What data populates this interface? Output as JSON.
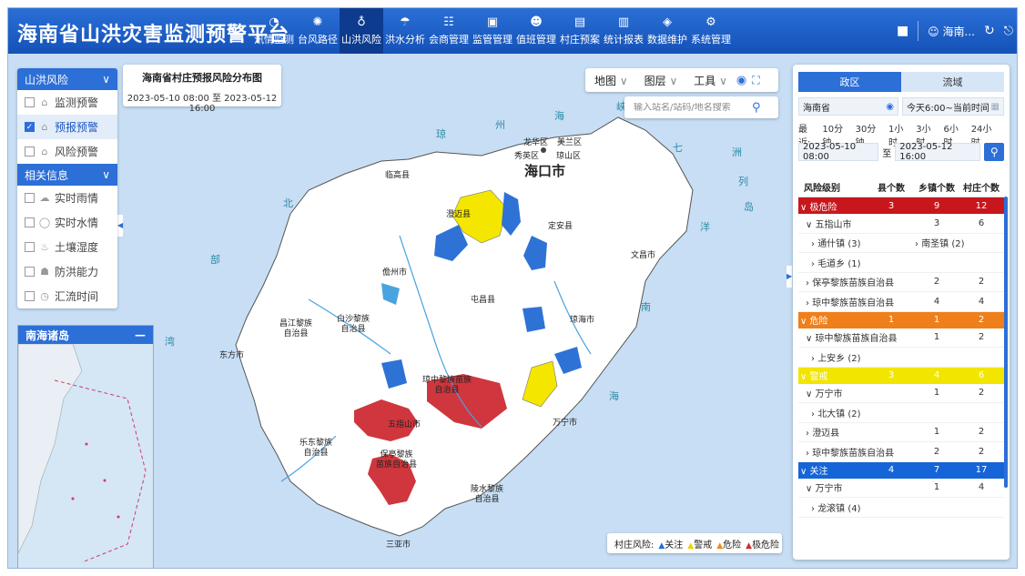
{
  "header": {
    "title": "海南省山洪灾害监测预警平台",
    "nav": [
      {
        "label": "汛情监测",
        "icon": "gauge-icon",
        "active": false
      },
      {
        "label": "台风路径",
        "icon": "typhoon-icon",
        "active": false
      },
      {
        "label": "山洪风险",
        "icon": "water-drop-icon",
        "active": true
      },
      {
        "label": "洪水分析",
        "icon": "flood-icon",
        "active": false
      },
      {
        "label": "会商管理",
        "icon": "meeting-icon",
        "active": false
      },
      {
        "label": "监管管理",
        "icon": "monitor-icon",
        "active": false
      },
      {
        "label": "值班管理",
        "icon": "duty-icon",
        "active": false
      },
      {
        "label": "村庄预案",
        "icon": "plan-icon",
        "active": false
      },
      {
        "label": "统计报表",
        "icon": "report-icon",
        "active": false
      },
      {
        "label": "数据维护",
        "icon": "data-icon",
        "active": false
      },
      {
        "label": "系统管理",
        "icon": "settings-icon",
        "active": false
      }
    ],
    "user": "海南..."
  },
  "left_panel": {
    "section1_title": "山洪风险",
    "section1_items": [
      {
        "label": "监测预警",
        "checked": false
      },
      {
        "label": "预报预警",
        "checked": true
      },
      {
        "label": "风险预警",
        "checked": false
      }
    ],
    "section2_title": "相关信息",
    "section2_items": [
      {
        "label": "实时雨情",
        "checked": false
      },
      {
        "label": "实时水情",
        "checked": false
      },
      {
        "label": "土壤湿度",
        "checked": false
      },
      {
        "label": "防洪能力",
        "checked": false
      },
      {
        "label": "汇流时间",
        "checked": false
      }
    ]
  },
  "minimap": {
    "title": "南海诸岛"
  },
  "title_card": {
    "title": "海南省村庄预报风险分布图",
    "range": "2023-05-10 08:00 至 2023-05-12 16:00"
  },
  "toolbar": {
    "map": "地图",
    "layers": "图层",
    "tools": "工具"
  },
  "search": {
    "placeholder": "输入站名/站码/地名搜索"
  },
  "map_labels": {
    "haikou": "海口市",
    "cities": [
      {
        "name": "龙华区"
      },
      {
        "name": "美兰区"
      },
      {
        "name": "秀英区"
      },
      {
        "name": "琼山区"
      },
      {
        "name": "临高县"
      },
      {
        "name": "澄迈县"
      },
      {
        "name": "定安县"
      },
      {
        "name": "文昌市"
      },
      {
        "name": "儋州市"
      },
      {
        "name": "屯昌县"
      },
      {
        "name": "琼海市"
      },
      {
        "name": "昌江黎族\n自治县"
      },
      {
        "name": "白沙黎族\n自治县"
      },
      {
        "name": "东方市"
      },
      {
        "name": "琼中黎族苗族\n自治县"
      },
      {
        "name": "五指山市"
      },
      {
        "name": "万宁市"
      },
      {
        "name": "乐东黎族\n自治县"
      },
      {
        "name": "保亭黎族\n苗族自治县"
      },
      {
        "name": "陵水黎族\n自治县"
      },
      {
        "name": "三亚市"
      }
    ],
    "seas": [
      "琼",
      "州",
      "海",
      "峡",
      "北",
      "部",
      "湾",
      "南",
      "海",
      "七",
      "洲",
      "列",
      "岛",
      "洋"
    ]
  },
  "legend": {
    "label": "村庄风险:",
    "items": [
      {
        "name": "关注",
        "color": "#1f6fe0"
      },
      {
        "name": "警戒",
        "color": "#f0d000"
      },
      {
        "name": "危险",
        "color": "#f08a1e"
      },
      {
        "name": "极危险",
        "color": "#d42a2a"
      }
    ]
  },
  "right_panel": {
    "tabs": [
      {
        "label": "政区",
        "active": true
      },
      {
        "label": "流域",
        "active": false
      }
    ],
    "region": "海南省",
    "time_preset": "今天6:00~当前时间",
    "recent_label": "最近:",
    "recent_options": [
      "10分钟",
      "30分钟",
      "1小时",
      "3小时",
      "6小时",
      "24小时"
    ],
    "start_time": "2023-05-10 08:00",
    "to_label": "至",
    "end_time": "2023-05-12 16:00",
    "table_headers": [
      "风险级别",
      "县个数",
      "乡镇个数",
      "村庄个数"
    ],
    "levels": [
      {
        "name": "极危险",
        "color": "#c8161d",
        "county": "3",
        "town": "9",
        "village": "12",
        "rows": [
          {
            "name": "五指山市",
            "open": true,
            "town": "3",
            "village": "6"
          },
          {
            "name": "通什镇 (3)",
            "name2": "南圣镇 (2)",
            "sub": true
          },
          {
            "name": "毛道乡 (1)",
            "sub": true
          },
          {
            "name": "保亭黎族苗族自治县",
            "open": false,
            "town": "2",
            "village": "2"
          },
          {
            "name": "琼中黎族苗族自治县",
            "open": false,
            "town": "4",
            "village": "4"
          }
        ]
      },
      {
        "name": "危险",
        "color": "#ef7f1a",
        "county": "1",
        "town": "1",
        "village": "2",
        "rows": [
          {
            "name": "琼中黎族苗族自治县",
            "open": true,
            "town": "1",
            "village": "2"
          },
          {
            "name": "上安乡 (2)",
            "sub": true
          }
        ]
      },
      {
        "name": "警戒",
        "color": "#f2e500",
        "county": "3",
        "town": "4",
        "village": "6",
        "rows": [
          {
            "name": "万宁市",
            "open": true,
            "town": "1",
            "village": "2"
          },
          {
            "name": "北大镇 (2)",
            "sub": true
          },
          {
            "name": "澄迈县",
            "open": false,
            "town": "1",
            "village": "2"
          },
          {
            "name": "琼中黎族苗族自治县",
            "open": false,
            "town": "2",
            "village": "2"
          }
        ]
      },
      {
        "name": "关注",
        "color": "#1565d8",
        "county": "4",
        "town": "7",
        "village": "17",
        "rows": [
          {
            "name": "万宁市",
            "open": true,
            "town": "1",
            "village": "4"
          },
          {
            "name": "龙滚镇 (4)",
            "sub": true
          }
        ]
      }
    ]
  }
}
